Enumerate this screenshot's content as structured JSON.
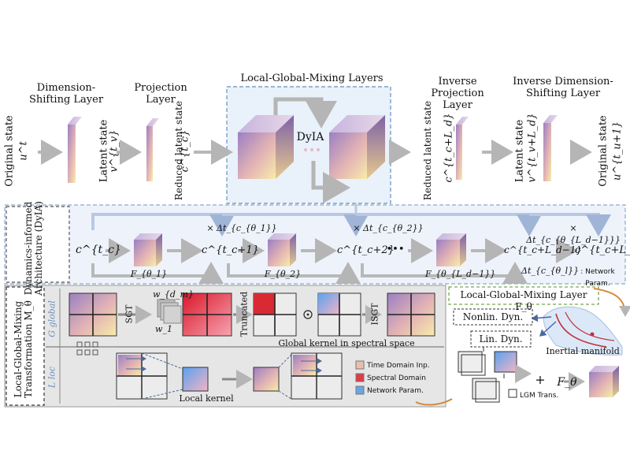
{
  "top": {
    "dim_shift_title": "Dimension-Shifting Layer",
    "projection_title": "Projection Layer",
    "lgm_layers_title": "Local-Global-Mixing Layers",
    "inverse_projection_title": "Inverse Projection Layer",
    "inverse_dim_shift_title": "Inverse Dimension-Shifting Layer",
    "original_state": "Original state",
    "original_state_sym": "u^t",
    "latent_state": "Latent state",
    "latent_state_sym": "v^{t_v}",
    "reduced_latent": "Reduced latent state",
    "reduced_latent_sym": "c^{t_c}",
    "dyia_center": "DyIA",
    "reduced_latent_out": "Reduced latent state",
    "reduced_latent_out_sym": "c^{t_c+L_d}",
    "latent_state_out": "Latent state",
    "latent_state_out_sym": "v^{t_v+L_d}",
    "original_state_out": "Original state",
    "original_state_out_sym": "u^{t_u+1}"
  },
  "dyia": {
    "side_label": "Dynamics-informed Architecture (DyIA)",
    "c0": "c^{t_c}",
    "f1": "F_{θ_1}",
    "c1": "c^{t_c+1}",
    "dt1": "× Δt_{c_{θ_1}}",
    "f2": "F_{θ_2}",
    "c2": "c^{t_c+2}",
    "dt2": "× Δt_{c_{θ_2}}",
    "dots": "•••",
    "fL": "F_{θ_{L_d−1}}",
    "cL1": "c^{t_c+L_d−1}",
    "dtL": "× Δt_{c_{θ_{L_d−1}}}",
    "cL": "c^{t_c+L_d}",
    "dt_note_sym": "Δt_{c_{θ_l}}",
    "dt_note": ": Network Param."
  },
  "lgmt": {
    "side_label": "Local-Global-Mixing Transformation M_θ",
    "global_sym": "G global",
    "loc_sym": "L loc",
    "sgt": "SGT",
    "w_dm": "w_{d_m}",
    "w_1": "w_1",
    "truncated": "Truncated",
    "isgt": "ISGT",
    "global_kernel": "Global kernel in spectral space",
    "local_kernel": "Local kernel",
    "legend": [
      {
        "label": "Time Domain Inp.",
        "color": "#d9a3b8"
      },
      {
        "label": "Spectral Domain",
        "color": "#e23c46"
      },
      {
        "label": "Network Param.",
        "color": "#68a6e6"
      }
    ]
  },
  "lgm_layer": {
    "title": "Local-Global-Mixing Layer F_θ",
    "nonlin": "Nonlin. Dyn.",
    "lin": "Lin. Dyn.",
    "inertial": "Inertial manifold",
    "plus": "+",
    "f_theta": "F_θ",
    "lgm_trans": "LGM Trans."
  },
  "colors": {
    "cube_top": "#a98cc9",
    "cube_bottom": "#f6e9a2",
    "spectral": "#e23c46",
    "param": "#68a6e6",
    "dashed_blue": "#7aa0c8",
    "dashed_green": "#7aa84a"
  }
}
